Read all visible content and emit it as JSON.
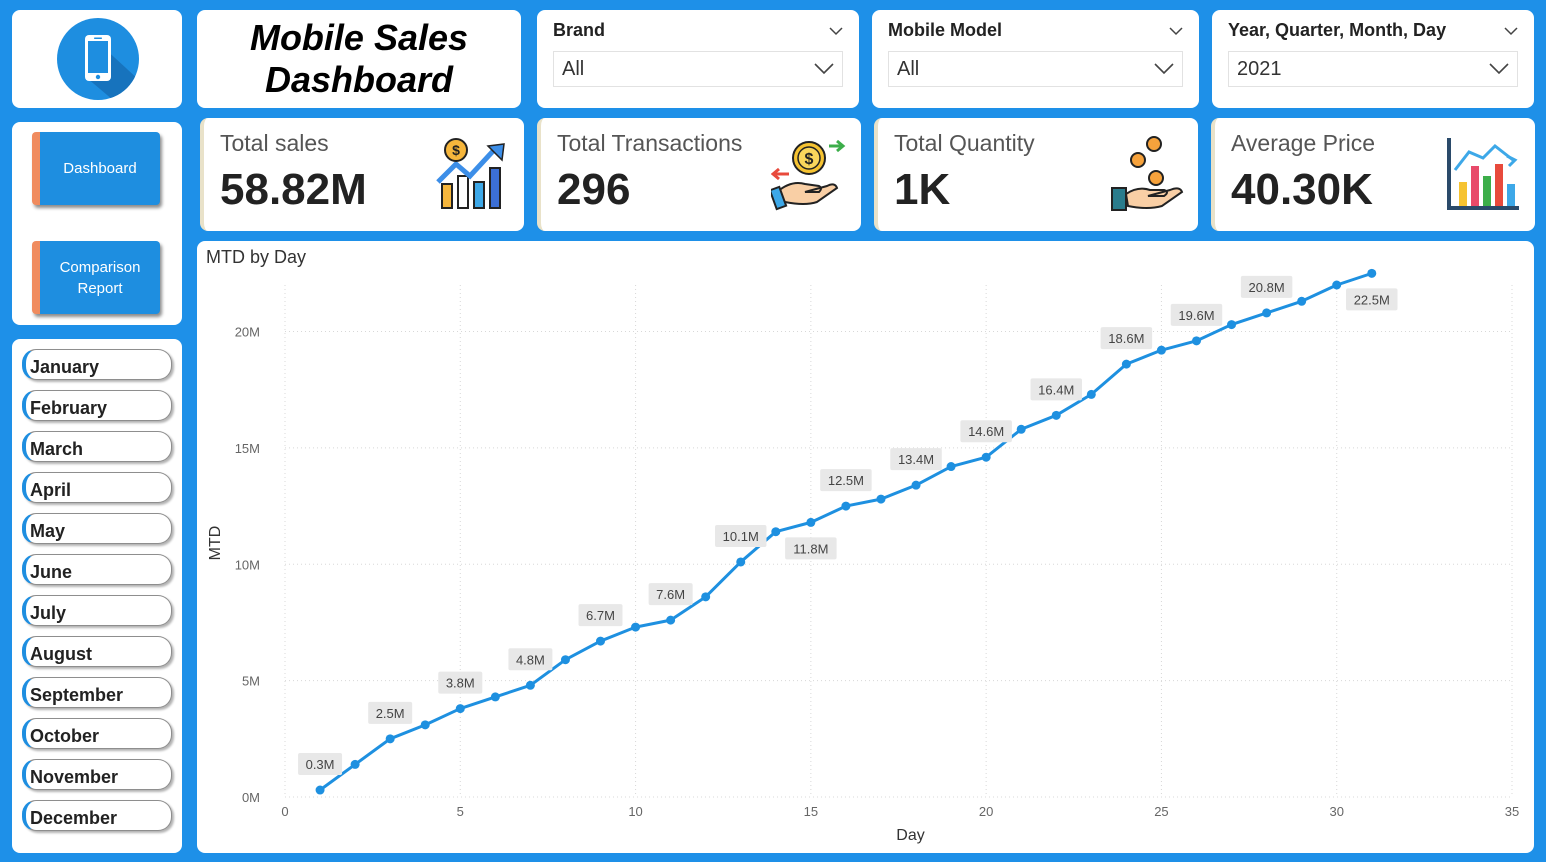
{
  "header": {
    "title": "Mobile Sales Dashboard"
  },
  "filters": [
    {
      "label": "Brand",
      "value": "All"
    },
    {
      "label": "Mobile Model",
      "value": "All"
    },
    {
      "label": "Year, Quarter, Month, Day",
      "value": "2021"
    }
  ],
  "kpis": [
    {
      "label": "Total sales",
      "value": "58.82M",
      "icon": "chart-growth-icon"
    },
    {
      "label": "Total Transactions",
      "value": "296",
      "icon": "money-exchange-icon"
    },
    {
      "label": "Total Quantity",
      "value": "1K",
      "icon": "hand-coins-icon"
    },
    {
      "label": "Average Price",
      "value": "40.30K",
      "icon": "bar-chart-icon"
    }
  ],
  "nav": {
    "dashboard_label": "Dashboard",
    "comparison_label": "Comparison Report"
  },
  "months": [
    "January",
    "February",
    "March",
    "April",
    "May",
    "June",
    "July",
    "August",
    "September",
    "October",
    "November",
    "December"
  ],
  "colors": {
    "background": "#1e90e8",
    "line": "#1e90e0",
    "accent": "#f08b5e"
  },
  "chart_data": {
    "type": "line",
    "title": "MTD by Day",
    "xlabel": "Day",
    "ylabel": "MTD",
    "xlim": [
      0,
      35
    ],
    "ylim": [
      0,
      22000000
    ],
    "x_ticks": [
      0,
      5,
      10,
      15,
      20,
      25,
      30,
      35
    ],
    "y_ticks": [
      0,
      5000000,
      10000000,
      15000000,
      20000000
    ],
    "y_tick_labels": [
      "0M",
      "5M",
      "10M",
      "15M",
      "20M"
    ],
    "grid": true,
    "series": [
      {
        "x": [
          1,
          2,
          3,
          4,
          5,
          6,
          7,
          8,
          9,
          10,
          11,
          12,
          13,
          14,
          15,
          16,
          17,
          18,
          19,
          20,
          21,
          22,
          23,
          24,
          25,
          26,
          27,
          28,
          29,
          30,
          31
        ],
        "values": [
          300000,
          1400000,
          2500000,
          3100000,
          3800000,
          4300000,
          4800000,
          5900000,
          6700000,
          7300000,
          7600000,
          8600000,
          10100000,
          11400000,
          11800000,
          12500000,
          12800000,
          13400000,
          14200000,
          14600000,
          15800000,
          16400000,
          17300000,
          18600000,
          19200000,
          19600000,
          20300000,
          20800000,
          21300000,
          22000000,
          22500000
        ]
      }
    ],
    "data_labels": [
      {
        "x": 1,
        "text": "0.3M"
      },
      {
        "x": 3,
        "text": "2.5M"
      },
      {
        "x": 5,
        "text": "3.8M"
      },
      {
        "x": 7,
        "text": "4.8M"
      },
      {
        "x": 9,
        "text": "6.7M"
      },
      {
        "x": 11,
        "text": "7.6M"
      },
      {
        "x": 13,
        "text": "10.1M"
      },
      {
        "x": 15,
        "text": "11.8M"
      },
      {
        "x": 16,
        "text": "12.5M"
      },
      {
        "x": 18,
        "text": "13.4M"
      },
      {
        "x": 20,
        "text": "14.6M"
      },
      {
        "x": 22,
        "text": "16.4M"
      },
      {
        "x": 24,
        "text": "18.6M"
      },
      {
        "x": 26,
        "text": "19.6M"
      },
      {
        "x": 28,
        "text": "20.8M"
      },
      {
        "x": 31,
        "text": "22.5M"
      }
    ]
  }
}
